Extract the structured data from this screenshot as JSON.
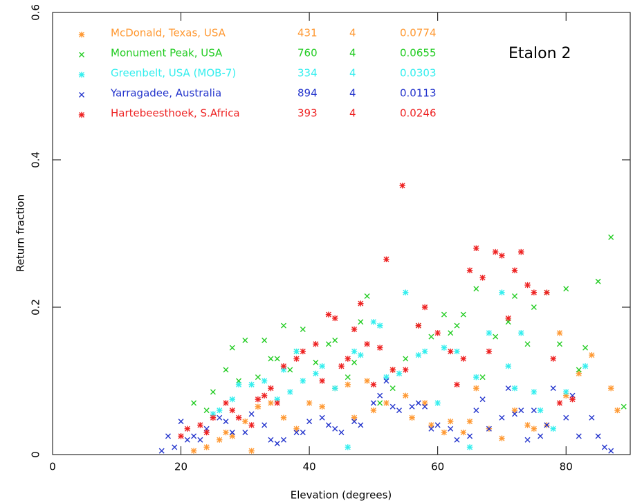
{
  "chart_data": {
    "type": "scatter",
    "annotation": "Etalon 2",
    "xlabel": "Elevation    (degrees)",
    "ylabel": "Return fraction",
    "xlim": [
      0,
      90
    ],
    "ylim": [
      0,
      0.6
    ],
    "xticks": [
      0,
      20,
      40,
      60,
      80
    ],
    "yticks": [
      0,
      0.2,
      0.4,
      0.6
    ],
    "series": [
      {
        "name": "McDonald, Texas, USA",
        "color": "#ff9933",
        "marker": "asterisk",
        "points": 431,
        "order": 4,
        "mean": 0.0774,
        "x": [
          22,
          24,
          26,
          27,
          28,
          30,
          31,
          32,
          34,
          36,
          38,
          40,
          42,
          44,
          46,
          47,
          49,
          50,
          52,
          53,
          55,
          56,
          58,
          59,
          61,
          62,
          64,
          65,
          66,
          68,
          70,
          72,
          74,
          75,
          77,
          79,
          80,
          82,
          84,
          87,
          88
        ],
        "y": [
          0.005,
          0.01,
          0.02,
          0.03,
          0.025,
          0.045,
          0.005,
          0.065,
          0.07,
          0.05,
          0.035,
          0.07,
          0.065,
          0.09,
          0.095,
          0.05,
          0.1,
          0.06,
          0.07,
          0.115,
          0.08,
          0.05,
          0.07,
          0.04,
          0.03,
          0.045,
          0.03,
          0.045,
          0.09,
          0.035,
          0.022,
          0.06,
          0.04,
          0.035,
          0.04,
          0.165,
          0.08,
          0.11,
          0.135,
          0.09,
          0.06
        ]
      },
      {
        "name": "Monument Peak, USA",
        "color": "#22cc22",
        "marker": "cross",
        "points": 760,
        "order": 4,
        "mean": 0.0655,
        "x": [
          22,
          24,
          25,
          27,
          28,
          29,
          30,
          32,
          33,
          34,
          35,
          36,
          37,
          38,
          39,
          41,
          43,
          44,
          46,
          47,
          48,
          49,
          51,
          53,
          55,
          57,
          59,
          61,
          62,
          63,
          64,
          66,
          67,
          69,
          71,
          72,
          74,
          75,
          77,
          79,
          80,
          82,
          83,
          85,
          87,
          89
        ],
        "y": [
          0.07,
          0.06,
          0.085,
          0.115,
          0.145,
          0.1,
          0.155,
          0.105,
          0.155,
          0.13,
          0.13,
          0.175,
          0.115,
          0.14,
          0.17,
          0.125,
          0.15,
          0.155,
          0.105,
          0.125,
          0.18,
          0.215,
          0.07,
          0.09,
          0.13,
          0.175,
          0.16,
          0.19,
          0.165,
          0.175,
          0.19,
          0.225,
          0.105,
          0.16,
          0.18,
          0.215,
          0.15,
          0.2,
          0.22,
          0.15,
          0.225,
          0.115,
          0.145,
          0.235,
          0.295,
          0.065
        ]
      },
      {
        "name": "Greenbelt, USA (MOB-7)",
        "color": "#33eeee",
        "marker": "asterisk",
        "points": 334,
        "order": 4,
        "mean": 0.0303,
        "x": [
          25,
          26,
          28,
          29,
          31,
          33,
          35,
          36,
          37,
          38,
          39,
          41,
          42,
          44,
          46,
          47,
          48,
          50,
          51,
          52,
          54,
          55,
          57,
          58,
          60,
          61,
          63,
          65,
          66,
          68,
          70,
          71,
          72,
          73,
          75,
          76,
          78,
          80,
          83
        ],
        "y": [
          0.055,
          0.06,
          0.075,
          0.095,
          0.095,
          0.1,
          0.075,
          0.115,
          0.085,
          0.14,
          0.1,
          0.11,
          0.12,
          0.09,
          0.01,
          0.14,
          0.135,
          0.18,
          0.175,
          0.105,
          0.11,
          0.22,
          0.135,
          0.14,
          0.07,
          0.145,
          0.14,
          0.01,
          0.105,
          0.165,
          0.22,
          0.12,
          0.09,
          0.165,
          0.085,
          0.06,
          0.035,
          0.085,
          0.12
        ]
      },
      {
        "name": "Yarragadee, Australia",
        "color": "#2233cc",
        "marker": "cross",
        "points": 894,
        "order": 4,
        "mean": 0.0113,
        "x": [
          17,
          18,
          19,
          20,
          21,
          22,
          23,
          24,
          26,
          27,
          28,
          30,
          31,
          33,
          34,
          35,
          36,
          38,
          39,
          40,
          42,
          43,
          44,
          45,
          47,
          48,
          50,
          51,
          52,
          53,
          54,
          56,
          57,
          58,
          59,
          60,
          62,
          63,
          65,
          66,
          67,
          68,
          70,
          71,
          72,
          73,
          74,
          75,
          76,
          77,
          78,
          80,
          81,
          82,
          84,
          85,
          86,
          87
        ],
        "y": [
          0.005,
          0.025,
          0.01,
          0.045,
          0.02,
          0.025,
          0.02,
          0.035,
          0.05,
          0.045,
          0.03,
          0.03,
          0.055,
          0.04,
          0.02,
          0.015,
          0.02,
          0.03,
          0.03,
          0.045,
          0.05,
          0.04,
          0.035,
          0.03,
          0.045,
          0.04,
          0.07,
          0.08,
          0.1,
          0.065,
          0.06,
          0.065,
          0.07,
          0.065,
          0.035,
          0.04,
          0.035,
          0.02,
          0.025,
          0.06,
          0.075,
          0.035,
          0.05,
          0.09,
          0.055,
          0.06,
          0.02,
          0.06,
          0.025,
          0.04,
          0.09,
          0.05,
          0.08,
          0.025,
          0.05,
          0.025,
          0.01,
          0.005
        ]
      },
      {
        "name": "Hartebeesthoek, S.Africa",
        "color": "#ee2222",
        "marker": "asterisk",
        "points": 393,
        "order": 4,
        "mean": 0.0246,
        "x": [
          20,
          21,
          23,
          24,
          25,
          27,
          28,
          29,
          31,
          32,
          33,
          34,
          35,
          36,
          38,
          39,
          41,
          42,
          43,
          44,
          45,
          46,
          47,
          48,
          49,
          50,
          51,
          52,
          53,
          54.5,
          55,
          57,
          58,
          60,
          62,
          63,
          64,
          65,
          66,
          67,
          68,
          69,
          70,
          71,
          72,
          73,
          74,
          75,
          77,
          78,
          79,
          81
        ],
        "y": [
          0.025,
          0.035,
          0.04,
          0.03,
          0.05,
          0.07,
          0.06,
          0.05,
          0.04,
          0.075,
          0.08,
          0.09,
          0.07,
          0.12,
          0.13,
          0.14,
          0.15,
          0.1,
          0.19,
          0.185,
          0.12,
          0.13,
          0.17,
          0.205,
          0.15,
          0.095,
          0.145,
          0.265,
          0.115,
          0.365,
          0.115,
          0.175,
          0.2,
          0.165,
          0.14,
          0.095,
          0.13,
          0.25,
          0.28,
          0.24,
          0.14,
          0.275,
          0.27,
          0.185,
          0.25,
          0.275,
          0.23,
          0.22,
          0.22,
          0.13,
          0.07,
          0.075
        ]
      }
    ]
  }
}
